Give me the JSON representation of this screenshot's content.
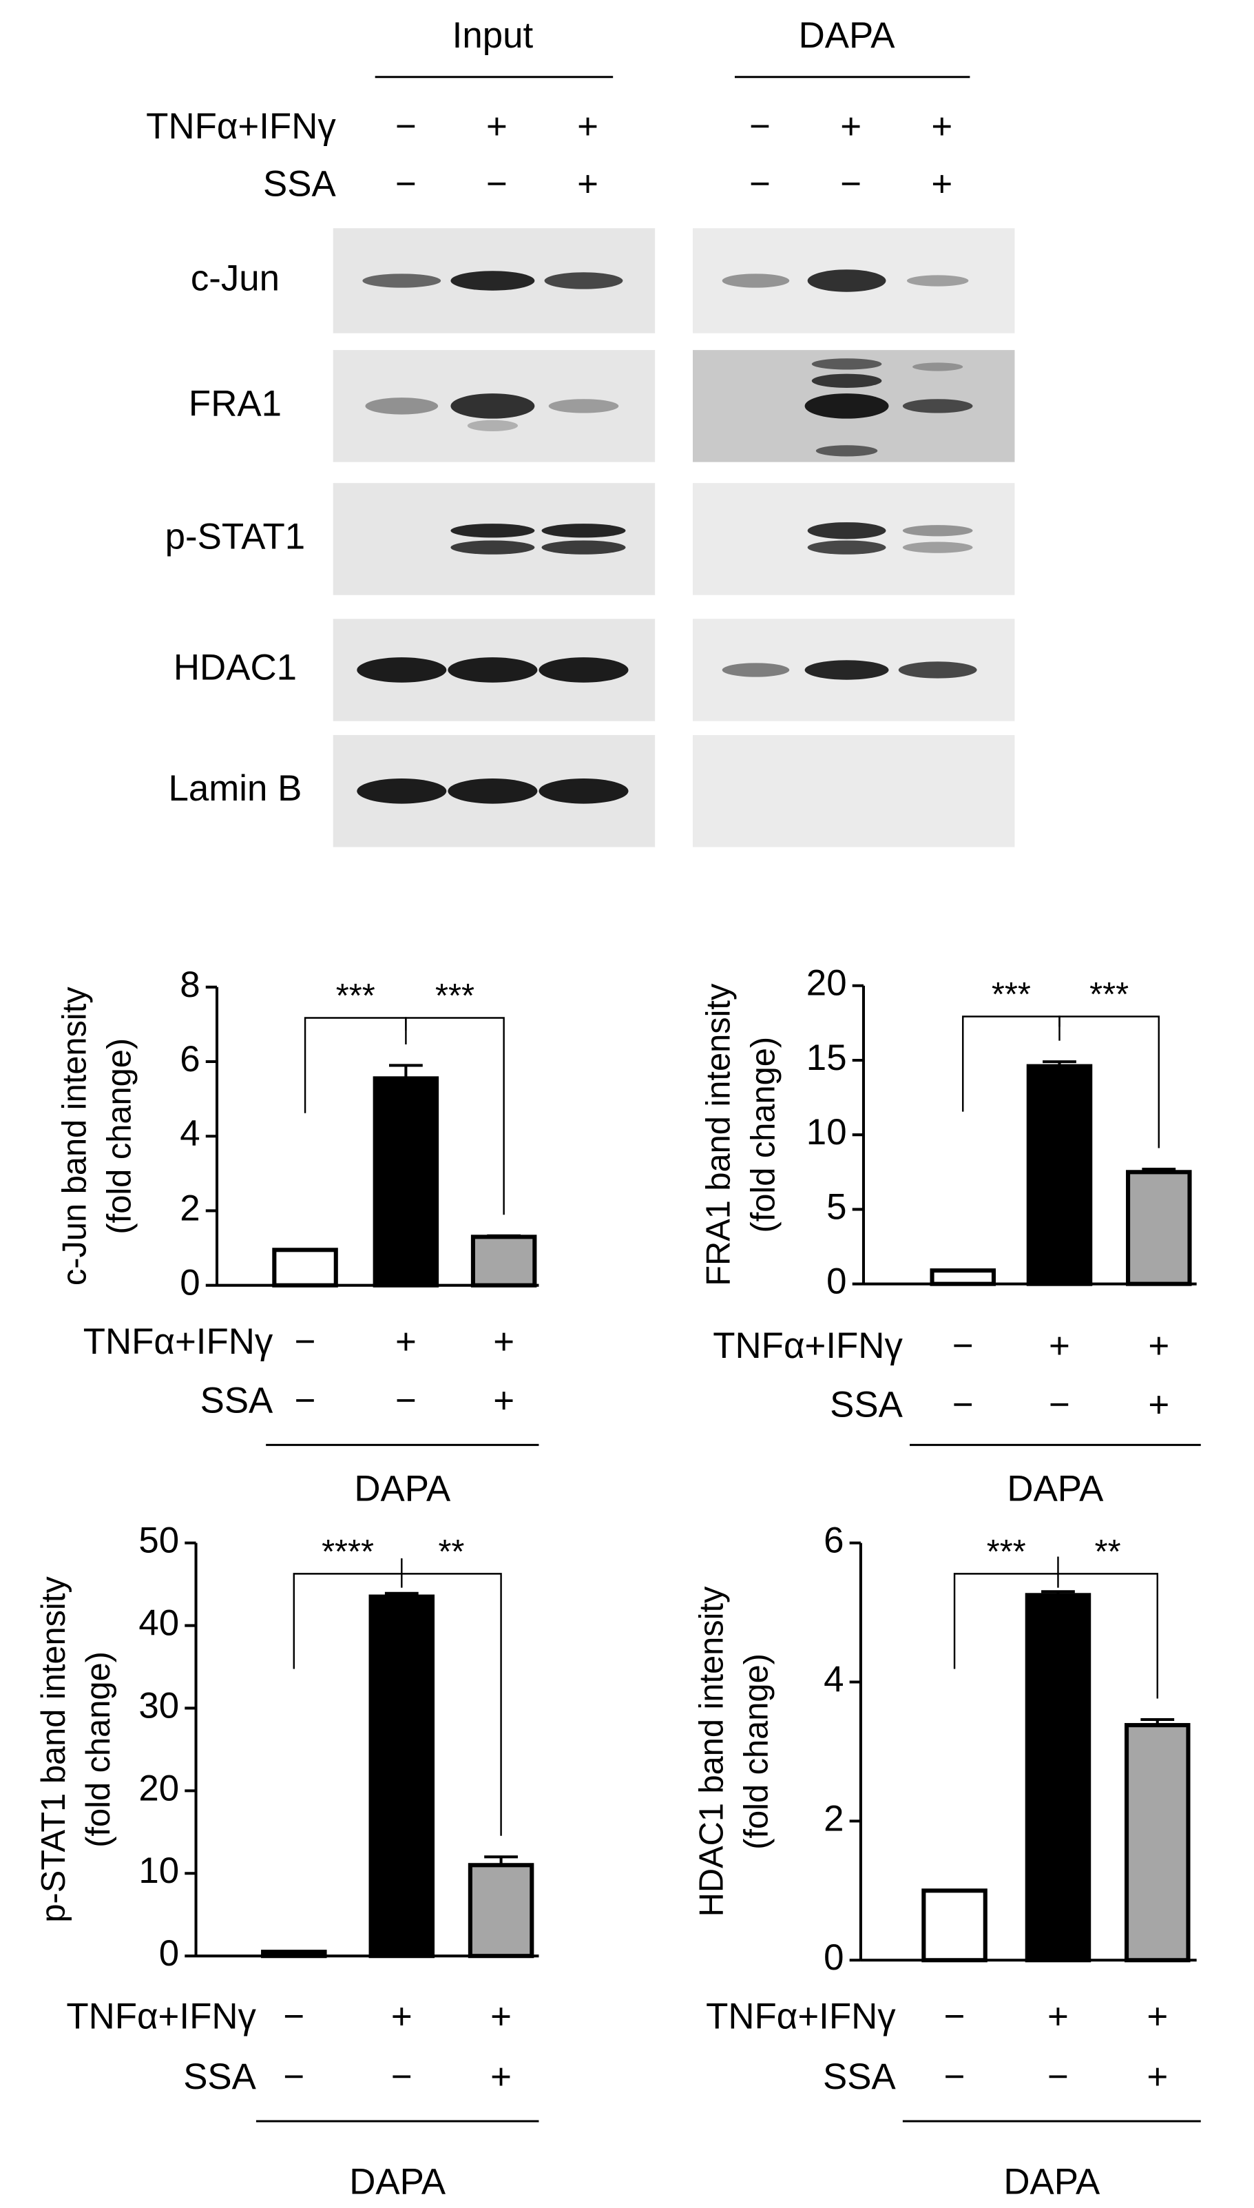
{
  "blot": {
    "groups": [
      "Input",
      "DAPA"
    ],
    "treatments": [
      {
        "name": "TNFα+IFNγ",
        "signs": [
          "−",
          "+",
          "+"
        ]
      },
      {
        "name": "SSA",
        "signs": [
          "−",
          "−",
          "+"
        ]
      }
    ],
    "proteins": [
      "c-Jun",
      "FRA1",
      "p-STAT1",
      "HDAC1",
      "Lamin B"
    ]
  },
  "chart_data": [
    {
      "type": "bar",
      "ylabel": [
        "c-Jun band intensity",
        "(fold change)"
      ],
      "values": [
        0.95,
        5.55,
        1.3
      ],
      "errors": [
        0,
        0.35,
        0.03
      ],
      "colors": [
        "#ffffff",
        "#000000",
        "#a6a6a6"
      ],
      "ylim": [
        0,
        8
      ],
      "yticks": [
        0,
        2,
        4,
        6,
        8
      ],
      "treatments": [
        {
          "name": "TNFα+IFNγ",
          "signs": [
            "−",
            "+",
            "+"
          ]
        },
        {
          "name": "SSA",
          "signs": [
            "−",
            "−",
            "+"
          ]
        }
      ],
      "group": "DAPA",
      "significance": [
        {
          "pair": [
            0,
            1
          ],
          "label": "***"
        },
        {
          "pair": [
            1,
            2
          ],
          "label": "***"
        }
      ]
    },
    {
      "type": "bar",
      "ylabel": [
        "FRA1 band intensity",
        "(fold change)"
      ],
      "values": [
        0.9,
        14.6,
        7.5
      ],
      "errors": [
        0,
        0.3,
        0.2
      ],
      "colors": [
        "#ffffff",
        "#000000",
        "#a6a6a6"
      ],
      "ylim": [
        0,
        20
      ],
      "yticks": [
        0,
        5,
        10,
        15,
        20
      ],
      "treatments": [
        {
          "name": "TNFα+IFNγ",
          "signs": [
            "−",
            "+",
            "+"
          ]
        },
        {
          "name": "SSA",
          "signs": [
            "−",
            "−",
            "+"
          ]
        }
      ],
      "group": "DAPA",
      "significance": [
        {
          "pair": [
            0,
            1
          ],
          "label": "***"
        },
        {
          "pair": [
            1,
            2
          ],
          "label": "***"
        }
      ]
    },
    {
      "type": "bar",
      "ylabel": [
        "p-STAT1 band intensity",
        "(fold change)"
      ],
      "values": [
        0.5,
        43.5,
        11
      ],
      "errors": [
        0,
        0.4,
        1
      ],
      "colors": [
        "#ffffff",
        "#000000",
        "#a6a6a6"
      ],
      "ylim": [
        0,
        50
      ],
      "yticks": [
        0,
        10,
        20,
        30,
        40,
        50
      ],
      "treatments": [
        {
          "name": "TNFα+IFNγ",
          "signs": [
            "−",
            "+",
            "+"
          ]
        },
        {
          "name": "SSA",
          "signs": [
            "−",
            "−",
            "+"
          ]
        }
      ],
      "group": "DAPA",
      "significance": [
        {
          "pair": [
            0,
            1
          ],
          "label": "****"
        },
        {
          "pair": [
            1,
            2
          ],
          "label": "**"
        }
      ]
    },
    {
      "type": "bar",
      "ylabel": [
        "HDAC1 band intensity",
        "(fold change)"
      ],
      "values": [
        1,
        5.25,
        3.38
      ],
      "errors": [
        0,
        0.05,
        0.08
      ],
      "colors": [
        "#ffffff",
        "#000000",
        "#a6a6a6"
      ],
      "ylim": [
        0,
        6
      ],
      "yticks": [
        0,
        2,
        4,
        6
      ],
      "treatments": [
        {
          "name": "TNFα+IFNγ",
          "signs": [
            "−",
            "+",
            "+"
          ]
        },
        {
          "name": "SSA",
          "signs": [
            "−",
            "−",
            "+"
          ]
        }
      ],
      "group": "DAPA",
      "significance": [
        {
          "pair": [
            0,
            1
          ],
          "label": "***"
        },
        {
          "pair": [
            1,
            2
          ],
          "label": "**"
        }
      ]
    }
  ]
}
